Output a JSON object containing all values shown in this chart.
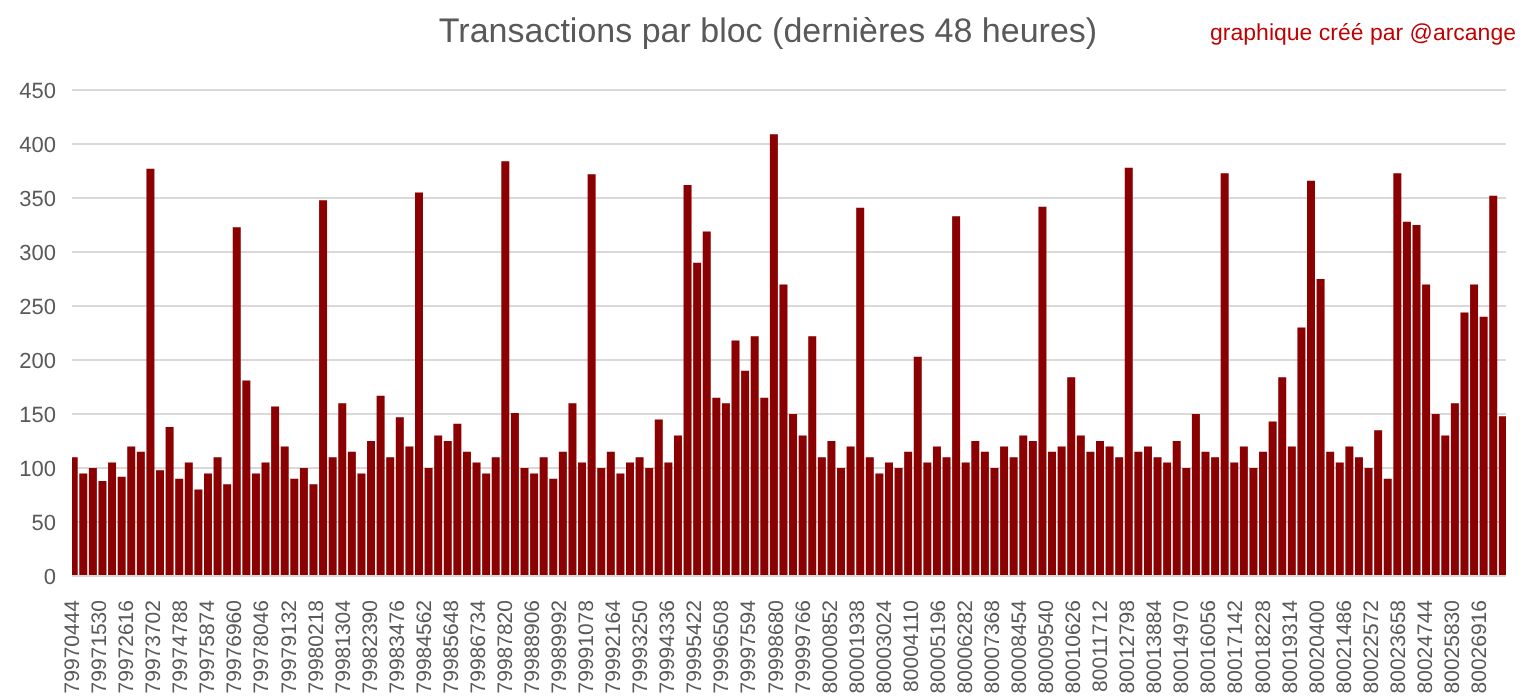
{
  "chart_data": {
    "type": "bar",
    "title": "Transactions par bloc (dernières 48 heures)",
    "annotations": [
      "graphique créé par @arcange"
    ],
    "x": [
      79970500,
      79970885,
      79971270,
      79971655,
      79972040,
      79972425,
      79972810,
      79973195,
      79973580,
      79973965,
      79974350,
      79974735,
      79975120,
      79975505,
      79975890,
      79976275,
      79976660,
      79977045,
      79977430,
      79977815,
      79978200,
      79978585,
      79978970,
      79979355,
      79979740,
      79980125,
      79980510,
      79980895,
      79981280,
      79981665,
      79982050,
      79982435,
      79982820,
      79983205,
      79983590,
      79983975,
      79984360,
      79984745,
      79985130,
      79985515,
      79985900,
      79986285,
      79986670,
      79987055,
      79987440,
      79987825,
      79988210,
      79988595,
      79988980,
      79989365,
      79989750,
      79990135,
      79990520,
      79990905,
      79991290,
      79991675,
      79992060,
      79992445,
      79992830,
      79993215,
      79993600,
      79993985,
      79994370,
      79994755,
      79995140,
      79995525,
      79995910,
      79996295,
      79996680,
      79997065,
      79997450,
      79997835,
      79998220,
      79998605,
      79998990,
      79999375,
      79999760,
      80000145,
      80000530,
      80000915,
      80001300,
      80001685,
      80002070,
      80002455,
      80002840,
      80003225,
      80003610,
      80003995,
      80004380,
      80004765,
      80005150,
      80005535,
      80005920,
      80006305,
      80006690,
      80007075,
      80007460,
      80007845,
      80008230,
      80008615,
      80009000,
      80009385,
      80009770,
      80010155,
      80010540,
      80010925,
      80011310,
      80011695,
      80012080,
      80012465,
      80012850,
      80013235,
      80013620,
      80014005,
      80014390,
      80014775,
      80015160,
      80015545,
      80015930,
      80016315,
      80016700,
      80017085,
      80017470,
      80017855,
      80018240,
      80018625,
      80019010,
      80019395,
      80019780,
      80020165,
      80020550,
      80020935,
      80021320,
      80021705,
      80022090,
      80022475,
      80022860,
      80023245,
      80023630,
      80024015,
      80024400,
      80024785,
      80025170,
      80025555,
      80025940,
      80026325,
      80026710,
      80027095,
      80027480,
      80027865
    ],
    "values": [
      110,
      95,
      100,
      88,
      105,
      92,
      120,
      115,
      377,
      98,
      138,
      90,
      105,
      80,
      95,
      110,
      85,
      323,
      181,
      95,
      105,
      157,
      120,
      90,
      100,
      85,
      348,
      110,
      160,
      115,
      95,
      125,
      167,
      110,
      147,
      120,
      355,
      100,
      130,
      125,
      141,
      115,
      105,
      95,
      110,
      384,
      151,
      100,
      95,
      110,
      90,
      115,
      160,
      105,
      372,
      100,
      115,
      95,
      105,
      110,
      100,
      145,
      105,
      130,
      362,
      290,
      319,
      165,
      160,
      218,
      190,
      222,
      165,
      409,
      270,
      150,
      130,
      222,
      110,
      125,
      100,
      120,
      341,
      110,
      95,
      105,
      100,
      115,
      203,
      105,
      120,
      110,
      333,
      105,
      125,
      115,
      100,
      120,
      110,
      130,
      125,
      342,
      115,
      120,
      184,
      130,
      115,
      125,
      120,
      110,
      378,
      115,
      120,
      110,
      105,
      125,
      100,
      150,
      115,
      110,
      373,
      105,
      120,
      100,
      115,
      143,
      184,
      120,
      230,
      366,
      275,
      115,
      105,
      120,
      110,
      100,
      135,
      90,
      373,
      328,
      325,
      270,
      150,
      130,
      160,
      244,
      270,
      240,
      352,
      148
    ],
    "color": "#8b0000",
    "xlim": [
      79970400,
      80027960
    ],
    "xticks": [
      79970444,
      79971530,
      79972616,
      79973702,
      79974788,
      79975874,
      79976960,
      79978046,
      79979132,
      79980218,
      79981304,
      79982390,
      79983476,
      79984562,
      79985648,
      79986734,
      79987820,
      79988906,
      79989992,
      79991078,
      79992164,
      79993250,
      79994336,
      79995422,
      79996508,
      79997594,
      79998680,
      79999766,
      80000852,
      80001938,
      80003024,
      80004110,
      80005196,
      80006282,
      80007368,
      80008454,
      80009540,
      80010626,
      80011712,
      80012798,
      80013884,
      80014970,
      80016056,
      80017142,
      80018228,
      80019314,
      80020400,
      80021486,
      80022572,
      80023658,
      80024744,
      80025830,
      80026916
    ],
    "ylim": [
      0,
      450
    ],
    "yticks": [
      0,
      50,
      100,
      150,
      200,
      250,
      300,
      350,
      400,
      450
    ],
    "grid": "y"
  }
}
